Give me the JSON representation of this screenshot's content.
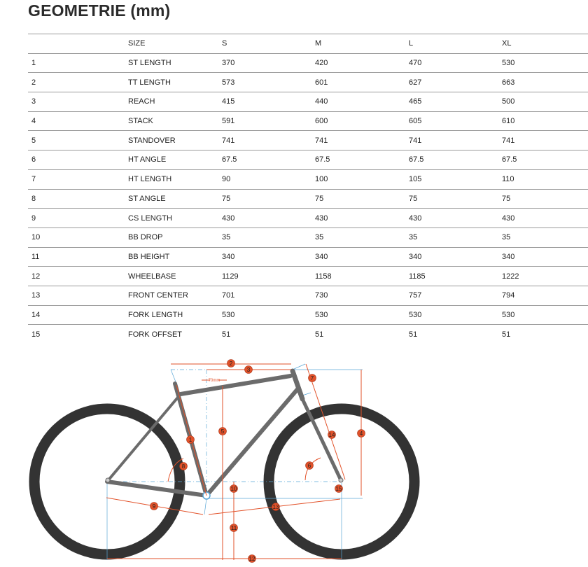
{
  "title": "GEOMETRIE (mm)",
  "table": {
    "header": [
      "",
      "SIZE",
      "S",
      "M",
      "L",
      "XL"
    ],
    "rows": [
      [
        "1",
        "ST LENGTH",
        "370",
        "420",
        "470",
        "530"
      ],
      [
        "2",
        "TT LENGTH",
        "573",
        "601",
        "627",
        "663"
      ],
      [
        "3",
        "REACH",
        "415",
        "440",
        "465",
        "500"
      ],
      [
        "4",
        "STACK",
        "591",
        "600",
        "605",
        "610"
      ],
      [
        "5",
        "STANDOVER",
        "741",
        "741",
        "741",
        "741"
      ],
      [
        "6",
        "HT ANGLE",
        "67.5",
        "67.5",
        "67.5",
        "67.5"
      ],
      [
        "7",
        "HT LENGTH",
        "90",
        "100",
        "105",
        "110"
      ],
      [
        "8",
        "ST ANGLE",
        "75",
        "75",
        "75",
        "75"
      ],
      [
        "9",
        "CS LENGTH",
        "430",
        "430",
        "430",
        "430"
      ],
      [
        "10",
        "BB DROP",
        "35",
        "35",
        "35",
        "35"
      ],
      [
        "11",
        "BB HEIGHT",
        "340",
        "340",
        "340",
        "340"
      ],
      [
        "12",
        "WHEELBASE",
        "1129",
        "1158",
        "1185",
        "1222"
      ],
      [
        "13",
        "FRONT CENTER",
        "701",
        "730",
        "757",
        "794"
      ],
      [
        "14",
        "FORK LENGTH",
        "530",
        "530",
        "530",
        "530"
      ],
      [
        "15",
        "FORK OFFSET",
        "51",
        "51",
        "51",
        "51"
      ]
    ]
  },
  "diagram": {
    "offset_label": "70mm",
    "labels": [
      "1",
      "2",
      "3",
      "4",
      "5",
      "6",
      "7",
      "8",
      "9",
      "10",
      "11",
      "12",
      "13",
      "14",
      "15"
    ],
    "colors": {
      "dimension": "#e2522a",
      "guide": "#5aa6d6",
      "frame": "#6b6b6b",
      "tire": "#333333"
    }
  }
}
